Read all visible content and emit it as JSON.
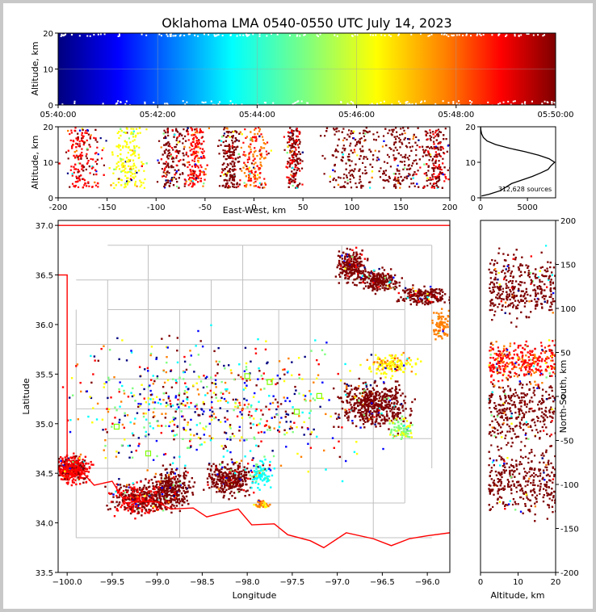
{
  "chart_data": [
    {
      "panel": "time-altitude",
      "type": "scatter",
      "title": "Oklahoma LMA 0540-0550 UTC July 14, 2023",
      "xlabel": "",
      "ylabel": "Altitude, km",
      "x_ticks": [
        "05:40:00",
        "05:42:00",
        "05:44:00",
        "05:46:00",
        "05:48:00",
        "05:50:00"
      ],
      "xlim": [
        "05:40:00",
        "05:50:00"
      ],
      "ylim": [
        0,
        20
      ],
      "y_ticks": [
        0,
        10,
        20
      ],
      "color_by": "time",
      "colormap": [
        "#00007f",
        "#0000ff",
        "#00ffff",
        "#7fff7f",
        "#ffff00",
        "#ff7f00",
        "#ff0000",
        "#7f0000"
      ]
    },
    {
      "panel": "east-west-altitude",
      "type": "scatter",
      "xlabel": "East-West, km",
      "ylabel": "Altitude, km",
      "xlim": [
        -200,
        200
      ],
      "x_ticks": [
        -200,
        -150,
        -100,
        -50,
        0,
        50,
        100,
        150,
        200
      ],
      "ylim": [
        0,
        20
      ],
      "y_ticks": [
        0,
        10,
        20
      ]
    },
    {
      "panel": "altitude-histogram",
      "type": "line",
      "annotation": "312,628 sources",
      "xlim": [
        0,
        8000
      ],
      "x_ticks": [
        0,
        5000
      ],
      "ylim": [
        0,
        20
      ],
      "y_ticks": [
        0,
        10,
        20
      ],
      "altitude_km": [
        0.5,
        1,
        2,
        3,
        4,
        5,
        6,
        7,
        8,
        9,
        10,
        11,
        12,
        13,
        14,
        15,
        16,
        17,
        18,
        19,
        20
      ],
      "counts": [
        100,
        900,
        2100,
        2700,
        3300,
        4400,
        5500,
        6400,
        7200,
        7500,
        7900,
        7300,
        6200,
        4700,
        3000,
        1600,
        700,
        300,
        120,
        40,
        10
      ]
    },
    {
      "panel": "plan-view",
      "type": "scatter",
      "xlabel": "Longitude",
      "ylabel": "Latitude",
      "xlim": [
        -100.1,
        -95.75
      ],
      "ylim": [
        33.5,
        37.05
      ],
      "x_ticks": [
        "−100.0",
        "−99.5",
        "−99.0",
        "−98.5",
        "−98.0",
        "−97.5",
        "−97.0",
        "−96.5",
        "−96.0"
      ],
      "x_tick_values": [
        -100.0,
        -99.5,
        -99.0,
        -98.5,
        -98.0,
        -97.5,
        -97.0,
        -96.5,
        -96.0
      ],
      "y_ticks": [
        "33.5",
        "34.0",
        "34.5",
        "35.0",
        "35.5",
        "36.0",
        "36.5",
        "37.0"
      ],
      "y_tick_values": [
        33.5,
        34.0,
        34.5,
        35.0,
        35.5,
        36.0,
        36.5,
        37.0
      ],
      "station_color": "#7fff00",
      "border_color": "#ff0000",
      "county_color": "#c0c0c0"
    },
    {
      "panel": "altitude-north-south",
      "type": "scatter",
      "xlabel": "Altitude, km",
      "ylabel": "North-South, km",
      "xlim": [
        0,
        20
      ],
      "x_ticks": [
        0,
        10,
        20
      ],
      "ylim": [
        -200,
        200
      ],
      "y_ticks": [
        -200,
        -150,
        -100,
        -50,
        0,
        50,
        100,
        150,
        200
      ]
    }
  ]
}
